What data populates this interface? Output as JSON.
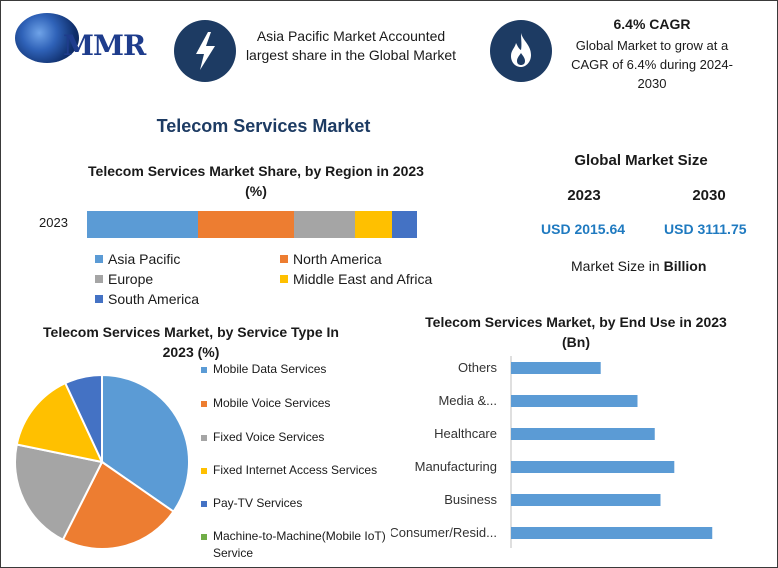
{
  "brand": {
    "logo_text": "MMR"
  },
  "header": {
    "item1_text": "Asia Pacific Market Accounted largest share in the Global Market",
    "item1_icon": "lightning-icon",
    "item2_title": "6.4% CAGR",
    "item2_text": "Global Market to grow at a CAGR of 6.4% during 2024-2030",
    "item2_icon": "flame-icon"
  },
  "main_title": "Telecom Services Market",
  "market_size": {
    "title": "Global Market Size",
    "year1": "2023",
    "year2": "2030",
    "value1": "USD 2015.64",
    "value2": "USD 3111.75",
    "unit_prefix": "Market Size in ",
    "unit_bold": "Billion"
  },
  "colors": {
    "blue": "#5b9bd5",
    "orange": "#ed7d31",
    "gray": "#a5a5a5",
    "yellow": "#ffc000",
    "darkblue": "#4472c4",
    "green": "#70ad47",
    "navy": "#1d3b63"
  },
  "chart_data": [
    {
      "type": "bar",
      "orientation": "horizontal-stacked",
      "title": "Telecom Services Market Share, by Region in 2023 (%)",
      "categories": [
        "2023"
      ],
      "series": [
        {
          "name": "Asia Pacific",
          "values": [
            36
          ],
          "color": "#5b9bd5"
        },
        {
          "name": "North America",
          "values": [
            31
          ],
          "color": "#ed7d31"
        },
        {
          "name": "Europe",
          "values": [
            20
          ],
          "color": "#a5a5a5"
        },
        {
          "name": "Middle East and Africa",
          "values": [
            12
          ],
          "color": "#ffc000"
        },
        {
          "name": "South America",
          "values": [
            8
          ],
          "color": "#4472c4"
        }
      ],
      "legend": "bottom"
    },
    {
      "type": "pie",
      "title": "Telecom Services Market, by Service Type In 2023 (%)",
      "labels": [
        "Mobile Data Services",
        "Mobile Voice Services",
        "Fixed Voice Services",
        "Fixed Internet Access Services",
        "Pay-TV Services",
        "Machine-to-Machine(Mobile IoT) Service"
      ],
      "values": [
        35,
        23,
        21,
        15,
        7,
        0
      ],
      "colors": [
        "#5b9bd5",
        "#ed7d31",
        "#a5a5a5",
        "#ffc000",
        "#4472c4",
        "#70ad47"
      ],
      "legend": "right"
    },
    {
      "type": "bar",
      "orientation": "horizontal",
      "title": "Telecom Services Market, by End Use in 2023 (Bn)",
      "categories": [
        "Others",
        "Media &...",
        "Healthcare",
        "Manufacturing",
        "Business",
        "Consumer/Resid..."
      ],
      "values": [
        78,
        110,
        125,
        142,
        130,
        175
      ],
      "xlim": [
        0,
        200
      ],
      "color": "#5b9bd5"
    }
  ]
}
